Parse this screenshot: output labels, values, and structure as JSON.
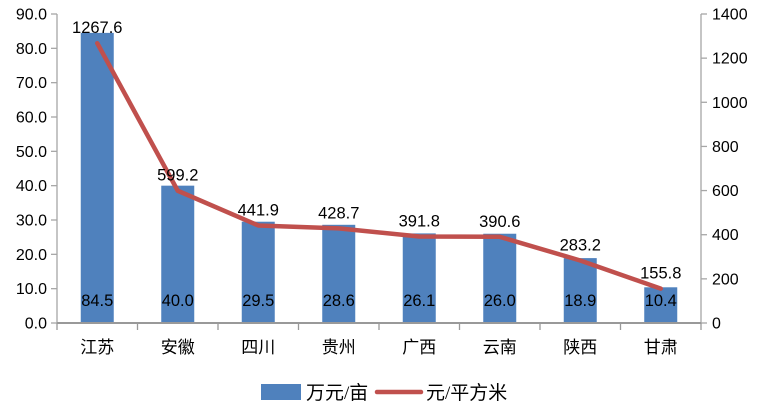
{
  "chart_data": {
    "type": "combo",
    "categories": [
      "江苏",
      "安徽",
      "四川",
      "贵州",
      "广西",
      "云南",
      "陕西",
      "甘肃"
    ],
    "series": [
      {
        "name": "万元/亩",
        "type": "bar",
        "axis": "left",
        "color": "#4F81BD",
        "values": [
          84.5,
          40.0,
          29.5,
          28.6,
          26.1,
          26.0,
          18.9,
          10.4
        ],
        "labels": [
          "84.5",
          "40.0",
          "29.5",
          "28.6",
          "26.1",
          "26.0",
          "18.9",
          "10.4"
        ]
      },
      {
        "name": "元/平方米",
        "type": "line",
        "axis": "right",
        "color": "#C0504D",
        "values": [
          1267.6,
          599.2,
          441.9,
          428.7,
          391.8,
          390.6,
          283.2,
          155.8
        ],
        "labels": [
          "1267.6",
          "599.2",
          "441.9",
          "428.7",
          "391.8",
          "390.6",
          "283.2",
          "155.8"
        ]
      }
    ],
    "left_axis": {
      "min": 0,
      "max": 90,
      "step": 10,
      "tick_labels": [
        "0.0",
        "10.0",
        "20.0",
        "30.0",
        "40.0",
        "50.0",
        "60.0",
        "70.0",
        "80.0",
        "90.0"
      ]
    },
    "right_axis": {
      "min": 0,
      "max": 1400,
      "step": 200,
      "tick_labels": [
        "0",
        "200",
        "400",
        "600",
        "800",
        "1000",
        "1200",
        "1400"
      ]
    },
    "grid": false,
    "legend_position": "bottom-center",
    "legend": [
      {
        "label": "万元/亩",
        "marker": "rect",
        "color": "#4F81BD"
      },
      {
        "label": "元/平方米",
        "marker": "line",
        "color": "#C0504D"
      }
    ],
    "colors": {
      "bar": "#4F81BD",
      "line": "#C0504D",
      "axis_line": "#A6A6A6",
      "baseline": "#999999",
      "text": "#000000",
      "background": "#FFFFFF"
    }
  }
}
